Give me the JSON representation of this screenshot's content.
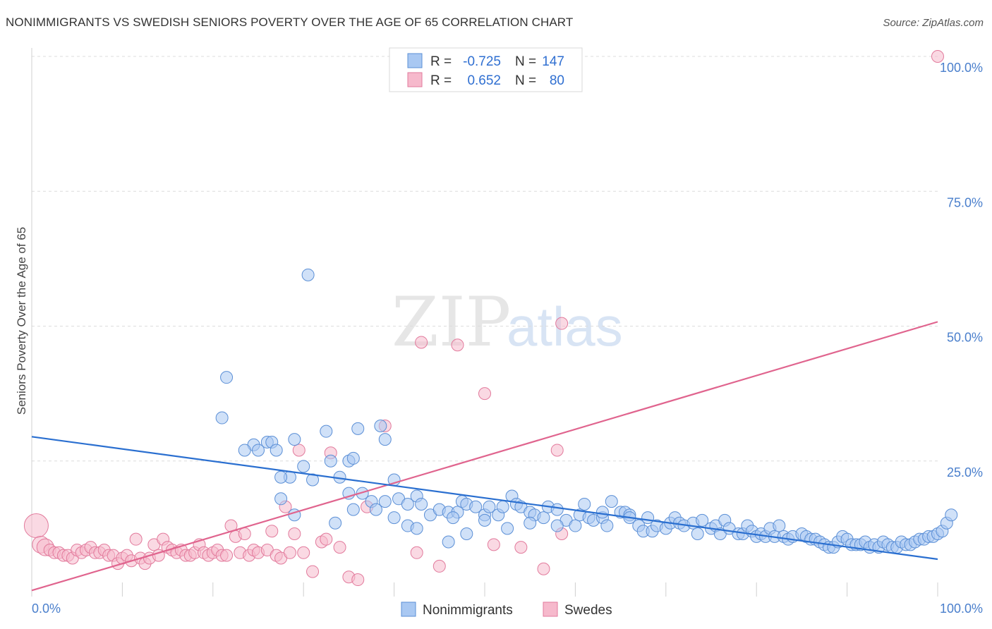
{
  "title": "NONIMMIGRANTS VS SWEDISH SENIORS POVERTY OVER THE AGE OF 65 CORRELATION CHART",
  "source": "Source: ZipAtlas.com",
  "watermark": {
    "zip": "ZIP",
    "atlas": "atlas"
  },
  "colors": {
    "blue_fill": "#a9c8f2",
    "blue_stroke": "#5b8fd6",
    "blue_line": "#2a6fd0",
    "pink_fill": "#f6b9cc",
    "pink_stroke": "#e27a9c",
    "pink_line": "#e0648e",
    "grid": "#dcdcdc",
    "tick_text": "#4a7fcc"
  },
  "legend": {
    "r_label": "R =",
    "n_label": "N =",
    "rows": [
      {
        "r": "-0.725",
        "n": "147"
      },
      {
        "r": "0.652",
        "n": "80"
      }
    ]
  },
  "chart_data": {
    "type": "scatter",
    "title": "NONIMMIGRANTS VS SWEDISH SENIORS POVERTY OVER THE AGE OF 65 CORRELATION CHART",
    "xlabel": "",
    "ylabel": "Seniors Poverty Over the Age of 65",
    "xlim": [
      0,
      100
    ],
    "ylim": [
      0,
      100
    ],
    "x_tick_labels": [
      "0.0%",
      "100.0%"
    ],
    "y_tick_labels": [
      "25.0%",
      "50.0%",
      "75.0%",
      "100.0%"
    ],
    "y_ticks": [
      25,
      50,
      75,
      100
    ],
    "grid": true,
    "legend_position": "bottom",
    "series": [
      {
        "name": "Nonimmigrants",
        "trend": [
          [
            0,
            29.5
          ],
          [
            100,
            6.8
          ]
        ],
        "points": [
          [
            30.5,
            59.5
          ],
          [
            21.5,
            40.5
          ],
          [
            21,
            33
          ],
          [
            24.5,
            28
          ],
          [
            25,
            27
          ],
          [
            26,
            28.5
          ],
          [
            26.5,
            28.5
          ],
          [
            27,
            27
          ],
          [
            29,
            29
          ],
          [
            36,
            31
          ],
          [
            32.5,
            30.5
          ],
          [
            35,
            25
          ],
          [
            35.5,
            25.5
          ],
          [
            38.5,
            31.5
          ],
          [
            39,
            29
          ],
          [
            40,
            21.5
          ],
          [
            28.5,
            22
          ],
          [
            30,
            24
          ],
          [
            31,
            21.5
          ],
          [
            33,
            25
          ],
          [
            34,
            22
          ],
          [
            35,
            19
          ],
          [
            36.5,
            19
          ],
          [
            37.5,
            17.5
          ],
          [
            38,
            16
          ],
          [
            39,
            17.5
          ],
          [
            40.5,
            18
          ],
          [
            41.5,
            17
          ],
          [
            42.5,
            18.5
          ],
          [
            43,
            17
          ],
          [
            44,
            15
          ],
          [
            45,
            16
          ],
          [
            46,
            15.5
          ],
          [
            47,
            15.5
          ],
          [
            47.5,
            17.5
          ],
          [
            48,
            17
          ],
          [
            49,
            16.5
          ],
          [
            50,
            15
          ],
          [
            50.5,
            16.5
          ],
          [
            51.5,
            15
          ],
          [
            52,
            16.5
          ],
          [
            53,
            18.5
          ],
          [
            53.5,
            17
          ],
          [
            54,
            16.5
          ],
          [
            55,
            15.5
          ],
          [
            55.5,
            15
          ],
          [
            56.5,
            14.5
          ],
          [
            57,
            16.5
          ],
          [
            58,
            16
          ],
          [
            59,
            14
          ],
          [
            60,
            13
          ],
          [
            60.5,
            15
          ],
          [
            61,
            17
          ],
          [
            61.5,
            14.5
          ],
          [
            62,
            14
          ],
          [
            63,
            14.5
          ],
          [
            63.5,
            13
          ],
          [
            64,
            17.5
          ],
          [
            65,
            15.5
          ],
          [
            65.5,
            15.5
          ],
          [
            66,
            15
          ],
          [
            67,
            13
          ],
          [
            67.5,
            12
          ],
          [
            68,
            14.5
          ],
          [
            68.5,
            12
          ],
          [
            69,
            13
          ],
          [
            70,
            12.5
          ],
          [
            70.5,
            13.5
          ],
          [
            71,
            14.5
          ],
          [
            71.5,
            13.5
          ],
          [
            72,
            13
          ],
          [
            73,
            13.5
          ],
          [
            73.5,
            11.5
          ],
          [
            74,
            14
          ],
          [
            75,
            12.5
          ],
          [
            75.5,
            13
          ],
          [
            76,
            11.5
          ],
          [
            76.5,
            14
          ],
          [
            77,
            12.5
          ],
          [
            78,
            11.5
          ],
          [
            78.5,
            11.5
          ],
          [
            79,
            13
          ],
          [
            79.5,
            12
          ],
          [
            80,
            11
          ],
          [
            80.5,
            11.5
          ],
          [
            81,
            11
          ],
          [
            81.5,
            12.5
          ],
          [
            82,
            11
          ],
          [
            82.5,
            13
          ],
          [
            83,
            11
          ],
          [
            83.5,
            10.5
          ],
          [
            84,
            11
          ],
          [
            85,
            11.5
          ],
          [
            85.5,
            11
          ],
          [
            86,
            10.5
          ],
          [
            86.5,
            10.5
          ],
          [
            87,
            10
          ],
          [
            87.5,
            9.5
          ],
          [
            88,
            9
          ],
          [
            88.5,
            9
          ],
          [
            89,
            10
          ],
          [
            89.5,
            11
          ],
          [
            90,
            10.5
          ],
          [
            90.5,
            9.5
          ],
          [
            91,
            9.5
          ],
          [
            91.5,
            9.5
          ],
          [
            92,
            10
          ],
          [
            92.5,
            9
          ],
          [
            93,
            9.5
          ],
          [
            93.5,
            9
          ],
          [
            94,
            10
          ],
          [
            94.5,
            9.5
          ],
          [
            95,
            9
          ],
          [
            95.5,
            9
          ],
          [
            96,
            10
          ],
          [
            96.5,
            9.5
          ],
          [
            97,
            9.5
          ],
          [
            97.5,
            10
          ],
          [
            98,
            10.5
          ],
          [
            98.5,
            10.5
          ],
          [
            99,
            11
          ],
          [
            99.5,
            11
          ],
          [
            100,
            11.5
          ],
          [
            100.5,
            12
          ],
          [
            101,
            13.5
          ],
          [
            101.5,
            15
          ],
          [
            23.5,
            27
          ],
          [
            27.5,
            22
          ],
          [
            29,
            15
          ],
          [
            27.5,
            18
          ],
          [
            33.5,
            13.5
          ],
          [
            35.5,
            16
          ],
          [
            40,
            14.5
          ],
          [
            41.5,
            13
          ],
          [
            42.5,
            12.5
          ],
          [
            46,
            10
          ],
          [
            46.5,
            14.5
          ],
          [
            48,
            11.5
          ],
          [
            50,
            14
          ],
          [
            52.5,
            12.5
          ],
          [
            55,
            13.5
          ],
          [
            58,
            13
          ],
          [
            63,
            15.5
          ],
          [
            66,
            14.5
          ]
        ]
      },
      {
        "name": "Swedes",
        "trend": [
          [
            0,
            1.0
          ],
          [
            100,
            50.8
          ]
        ],
        "points": [
          [
            100,
            100
          ],
          [
            0.5,
            13
          ],
          [
            1,
            9.5
          ],
          [
            1.5,
            9
          ],
          [
            2,
            8.5
          ],
          [
            2.5,
            8
          ],
          [
            3,
            8
          ],
          [
            3.5,
            7.5
          ],
          [
            4,
            7.5
          ],
          [
            4.5,
            7
          ],
          [
            5,
            8.5
          ],
          [
            5.5,
            8
          ],
          [
            6,
            8.5
          ],
          [
            6.5,
            9
          ],
          [
            7,
            8
          ],
          [
            7.5,
            8
          ],
          [
            8,
            8.5
          ],
          [
            8.5,
            7.5
          ],
          [
            9,
            7.5
          ],
          [
            9.5,
            6
          ],
          [
            10,
            7
          ],
          [
            10.5,
            7.5
          ],
          [
            11,
            6.5
          ],
          [
            11.5,
            10.5
          ],
          [
            12,
            7
          ],
          [
            12.5,
            6
          ],
          [
            13,
            7
          ],
          [
            13.5,
            9.5
          ],
          [
            14,
            7.5
          ],
          [
            14.5,
            10.5
          ],
          [
            15,
            9
          ],
          [
            15.5,
            8.5
          ],
          [
            16,
            8
          ],
          [
            16.5,
            8.5
          ],
          [
            17,
            7.5
          ],
          [
            17.5,
            7.5
          ],
          [
            18,
            8
          ],
          [
            18.5,
            9.5
          ],
          [
            19,
            8
          ],
          [
            19.5,
            7.5
          ],
          [
            20,
            8
          ],
          [
            20.5,
            8.5
          ],
          [
            21,
            7.5
          ],
          [
            21.5,
            7.5
          ],
          [
            22,
            13
          ],
          [
            22.5,
            11
          ],
          [
            23,
            8
          ],
          [
            23.5,
            11.5
          ],
          [
            24,
            7.5
          ],
          [
            24.5,
            8.5
          ],
          [
            25,
            8
          ],
          [
            26,
            8.5
          ],
          [
            26.5,
            12
          ],
          [
            27,
            7.5
          ],
          [
            27.5,
            7
          ],
          [
            28,
            16.5
          ],
          [
            28.5,
            8
          ],
          [
            29,
            11.5
          ],
          [
            29.5,
            27
          ],
          [
            30,
            8
          ],
          [
            31,
            4.5
          ],
          [
            32,
            10
          ],
          [
            32.5,
            10.5
          ],
          [
            33,
            26.5
          ],
          [
            34,
            9
          ],
          [
            35,
            3.5
          ],
          [
            36,
            3
          ],
          [
            37,
            16.5
          ],
          [
            39,
            31.5
          ],
          [
            42.5,
            8
          ],
          [
            43,
            47
          ],
          [
            45,
            5.5
          ],
          [
            47,
            46.5
          ],
          [
            50,
            37.5
          ],
          [
            51,
            9.5
          ],
          [
            54,
            9
          ],
          [
            56.5,
            5
          ],
          [
            58,
            27
          ],
          [
            58.5,
            11.5
          ],
          [
            58.5,
            50.5
          ]
        ]
      }
    ]
  }
}
